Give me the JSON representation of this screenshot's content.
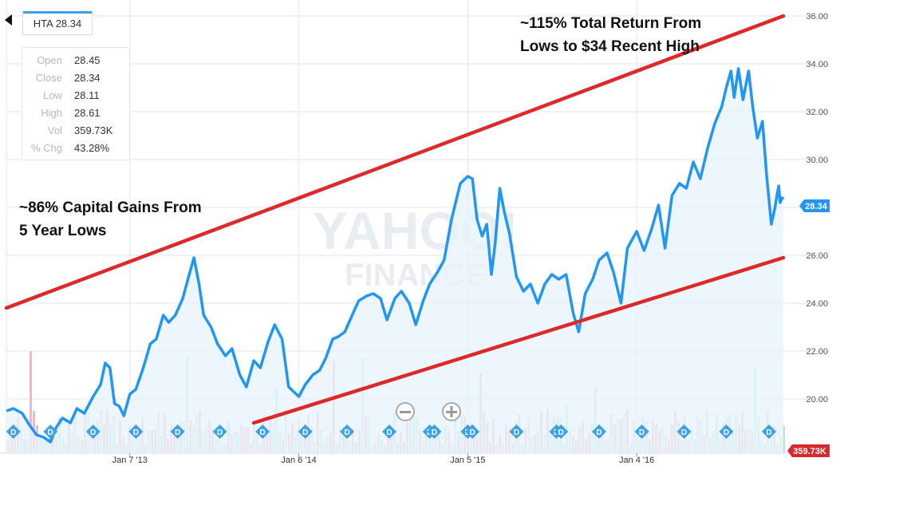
{
  "symbol_tab": "HTA 28.34",
  "quote": [
    {
      "label": "Open",
      "value": "28.45"
    },
    {
      "label": "Close",
      "value": "28.34"
    },
    {
      "label": "Low",
      "value": "28.11"
    },
    {
      "label": "High",
      "value": "28.61"
    },
    {
      "label": "Vol",
      "value": "359.73K"
    },
    {
      "label": "% Chg",
      "value": "43.28%"
    }
  ],
  "annotations": {
    "top_right_1": "~115% Total Return From",
    "top_right_2": "Lows to $34 Recent High",
    "left_1": "~86% Capital Gains From",
    "left_2": "5 Year Lows"
  },
  "watermark": {
    "line1": "YAHOO!",
    "line2": "FINANCE"
  },
  "price_badge": "28.34",
  "volume_badge": "359.73K",
  "dividend_marker": "D",
  "zoom_out_icon": "minus-circle-icon",
  "zoom_in_icon": "plus-circle-icon",
  "colors": {
    "price_line": "#2196f3",
    "trendline": "#dc2a2a",
    "volume_up": "#b3e9ce",
    "volume_down": "#f4b6c2",
    "dividend": "#3ba2e8",
    "volume_badge": "#d9292c"
  },
  "chart_data": {
    "type": "line",
    "x_tick_labels": [
      "Jan 7 '13",
      "Jan 6 '14",
      "Jan 5 '15",
      "Jan 4 '16"
    ],
    "y_tick_labels": [
      "20.00",
      "22.00",
      "24.00",
      "26.00",
      "28.00",
      "30.00",
      "32.00",
      "34.00",
      "36.00"
    ],
    "ylim": [
      18,
      36
    ],
    "x_range": [
      "2012-04-16",
      "2016-11-15"
    ],
    "grid": true,
    "series": [
      {
        "values": [
          [
            "2012-04-16",
            19.5
          ],
          [
            "2012-05-01",
            19.6
          ],
          [
            "2012-05-20",
            19.4
          ],
          [
            "2012-06-05",
            18.9
          ],
          [
            "2012-06-20",
            18.5
          ],
          [
            "2012-07-05",
            18.4
          ],
          [
            "2012-07-20",
            18.2
          ],
          [
            "2012-08-01",
            18.8
          ],
          [
            "2012-08-15",
            19.2
          ],
          [
            "2012-09-01",
            19.0
          ],
          [
            "2012-09-15",
            19.6
          ],
          [
            "2012-10-01",
            19.4
          ],
          [
            "2012-10-20",
            20.1
          ],
          [
            "2012-11-05",
            20.6
          ],
          [
            "2012-11-15",
            21.5
          ],
          [
            "2012-11-25",
            21.3
          ],
          [
            "2012-12-05",
            19.8
          ],
          [
            "2012-12-15",
            19.7
          ],
          [
            "2012-12-25",
            19.3
          ],
          [
            "2013-01-07",
            20.2
          ],
          [
            "2013-01-20",
            20.4
          ],
          [
            "2013-02-05",
            21.3
          ],
          [
            "2013-02-20",
            22.3
          ],
          [
            "2013-03-05",
            22.5
          ],
          [
            "2013-03-20",
            23.5
          ],
          [
            "2013-04-01",
            23.2
          ],
          [
            "2013-04-15",
            23.5
          ],
          [
            "2013-05-01",
            24.2
          ],
          [
            "2013-05-15",
            25.2
          ],
          [
            "2013-05-25",
            25.9
          ],
          [
            "2013-06-05",
            24.8
          ],
          [
            "2013-06-15",
            23.5
          ],
          [
            "2013-07-01",
            23.0
          ],
          [
            "2013-07-15",
            22.3
          ],
          [
            "2013-08-01",
            21.8
          ],
          [
            "2013-08-15",
            22.1
          ],
          [
            "2013-09-01",
            21.0
          ],
          [
            "2013-09-15",
            20.5
          ],
          [
            "2013-10-01",
            21.6
          ],
          [
            "2013-10-15",
            21.3
          ],
          [
            "2013-11-01",
            22.4
          ],
          [
            "2013-11-15",
            23.1
          ],
          [
            "2013-12-01",
            22.5
          ],
          [
            "2013-12-15",
            20.5
          ],
          [
            "2014-01-06",
            20.1
          ],
          [
            "2014-01-20",
            20.6
          ],
          [
            "2014-02-05",
            21.0
          ],
          [
            "2014-02-20",
            21.2
          ],
          [
            "2014-03-05",
            21.7
          ],
          [
            "2014-03-20",
            22.5
          ],
          [
            "2014-04-01",
            22.6
          ],
          [
            "2014-04-15",
            22.8
          ],
          [
            "2014-05-01",
            23.5
          ],
          [
            "2014-05-15",
            24.1
          ],
          [
            "2014-06-01",
            24.3
          ],
          [
            "2014-06-15",
            24.4
          ],
          [
            "2014-07-01",
            24.2
          ],
          [
            "2014-07-15",
            23.3
          ],
          [
            "2014-08-01",
            24.2
          ],
          [
            "2014-08-15",
            24.5
          ],
          [
            "2014-09-01",
            24.0
          ],
          [
            "2014-09-15",
            23.1
          ],
          [
            "2014-10-01",
            24.1
          ],
          [
            "2014-10-15",
            24.8
          ],
          [
            "2014-11-01",
            25.3
          ],
          [
            "2014-11-15",
            25.8
          ],
          [
            "2014-12-01",
            27.5
          ],
          [
            "2014-12-20",
            29.0
          ],
          [
            "2015-01-05",
            29.3
          ],
          [
            "2015-01-15",
            29.2
          ],
          [
            "2015-01-25",
            27.5
          ],
          [
            "2015-02-05",
            26.8
          ],
          [
            "2015-02-15",
            27.3
          ],
          [
            "2015-02-25",
            25.2
          ],
          [
            "2015-03-05",
            26.5
          ],
          [
            "2015-03-15",
            28.8
          ],
          [
            "2015-03-25",
            27.8
          ],
          [
            "2015-04-05",
            26.9
          ],
          [
            "2015-04-20",
            25.1
          ],
          [
            "2015-05-05",
            24.5
          ],
          [
            "2015-05-20",
            24.8
          ],
          [
            "2015-06-05",
            24.0
          ],
          [
            "2015-06-20",
            24.8
          ],
          [
            "2015-07-05",
            25.2
          ],
          [
            "2015-07-20",
            25.0
          ],
          [
            "2015-08-05",
            25.2
          ],
          [
            "2015-08-20",
            23.6
          ],
          [
            "2015-09-01",
            22.8
          ],
          [
            "2015-09-15",
            24.4
          ],
          [
            "2015-10-01",
            25.0
          ],
          [
            "2015-10-15",
            25.8
          ],
          [
            "2015-11-01",
            26.1
          ],
          [
            "2015-11-15",
            25.3
          ],
          [
            "2015-12-01",
            24.0
          ],
          [
            "2015-12-15",
            26.3
          ],
          [
            "2016-01-04",
            27.0
          ],
          [
            "2016-01-20",
            26.2
          ],
          [
            "2016-02-05",
            27.1
          ],
          [
            "2016-02-20",
            28.1
          ],
          [
            "2016-03-05",
            26.3
          ],
          [
            "2016-03-20",
            28.5
          ],
          [
            "2016-04-05",
            29.0
          ],
          [
            "2016-04-20",
            28.8
          ],
          [
            "2016-05-05",
            29.9
          ],
          [
            "2016-05-20",
            29.2
          ],
          [
            "2016-06-05",
            30.5
          ],
          [
            "2016-06-20",
            31.5
          ],
          [
            "2016-07-05",
            32.2
          ],
          [
            "2016-07-15",
            33.0
          ],
          [
            "2016-07-25",
            33.7
          ],
          [
            "2016-08-01",
            32.6
          ],
          [
            "2016-08-10",
            33.8
          ],
          [
            "2016-08-20",
            32.5
          ],
          [
            "2016-09-01",
            33.7
          ],
          [
            "2016-09-10",
            32.2
          ],
          [
            "2016-09-20",
            30.9
          ],
          [
            "2016-10-01",
            31.6
          ],
          [
            "2016-10-10",
            29.3
          ],
          [
            "2016-10-20",
            27.3
          ],
          [
            "2016-10-28",
            28.0
          ],
          [
            "2016-11-01",
            28.5
          ],
          [
            "2016-11-05",
            28.9
          ],
          [
            "2016-11-08",
            28.2
          ],
          [
            "2016-11-12",
            28.4
          ],
          [
            "2016-11-15",
            28.34
          ]
        ]
      }
    ],
    "trendlines": [
      {
        "start": [
          "2012-04-16",
          23.8
        ],
        "end": [
          "2016-11-15",
          36.0
        ]
      },
      {
        "start": [
          "2013-10-01",
          19.0
        ],
        "end": [
          "2016-11-15",
          25.9
        ]
      }
    ],
    "current_price": 28.34,
    "current_volume": "359.73K",
    "dividend_dates": [
      "2012-05-01",
      "2012-07-20",
      "2012-10-20",
      "2013-01-20",
      "2013-04-20",
      "2013-07-20",
      "2013-10-20",
      "2014-01-20",
      "2014-04-20",
      "2014-07-20",
      "2014-10-15",
      "2014-10-25",
      "2015-01-05",
      "2015-01-15",
      "2015-04-20",
      "2015-07-15",
      "2015-07-25",
      "2015-10-15",
      "2016-01-15",
      "2016-04-15",
      "2016-07-15",
      "2016-10-15"
    ]
  }
}
